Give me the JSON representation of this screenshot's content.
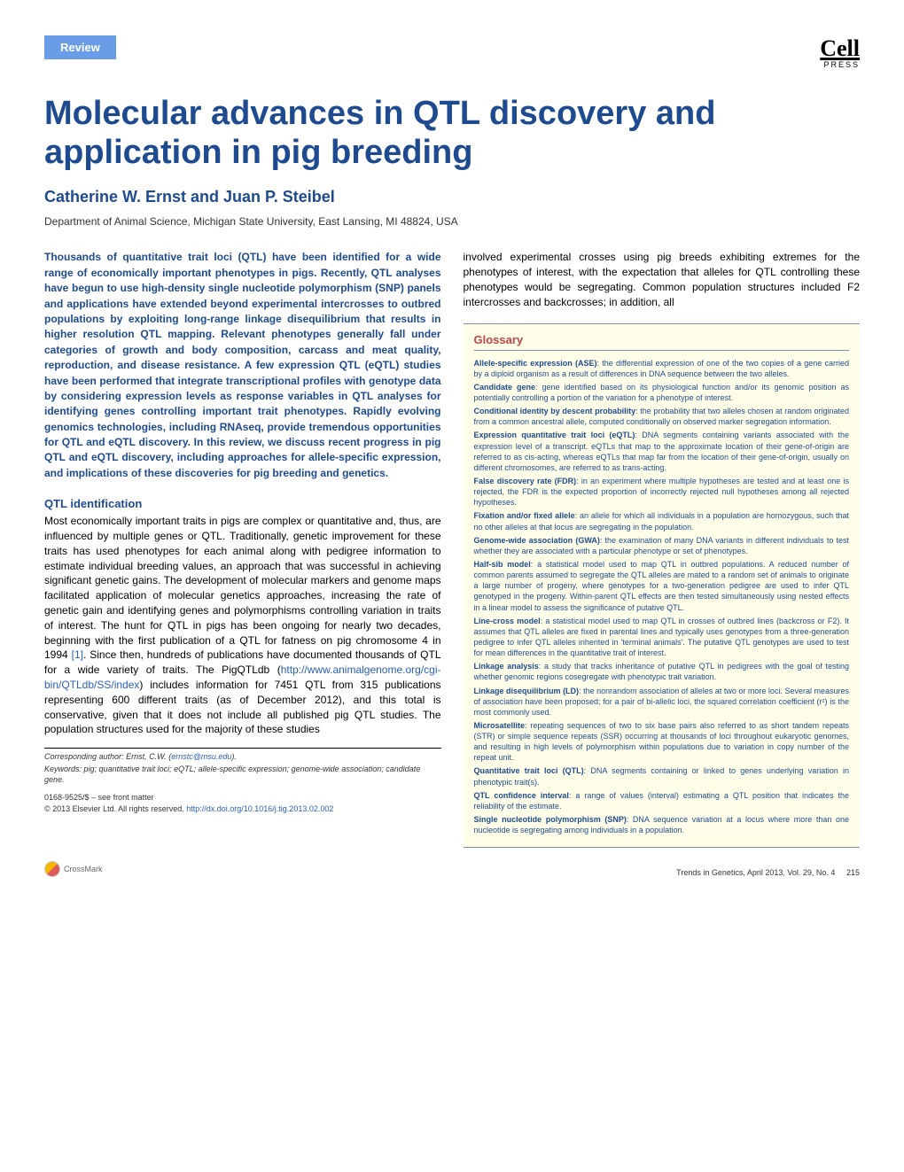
{
  "badge": "Review",
  "logo": {
    "brand": "Cell",
    "sub": "PRESS"
  },
  "title": "Molecular advances in QTL discovery and application in pig breeding",
  "authors": "Catherine W. Ernst and Juan P. Steibel",
  "affiliation": "Department of Animal Science, Michigan State University, East Lansing, MI 48824, USA",
  "abstract": "Thousands of quantitative trait loci (QTL) have been identified for a wide range of economically important phenotypes in pigs. Recently, QTL analyses have begun to use high-density single nucleotide polymorphism (SNP) panels and applications have extended beyond experimental intercrosses to outbred populations by exploiting long-range linkage disequilibrium that results in higher resolution QTL mapping. Relevant phenotypes generally fall under categories of growth and body composition, carcass and meat quality, reproduction, and disease resistance. A few expression QTL (eQTL) studies have been performed that integrate transcriptional profiles with genotype data by considering expression levels as response variables in QTL analyses for identifying genes controlling important trait phenotypes. Rapidly evolving genomics technologies, including RNAseq, provide tremendous opportunities for QTL and eQTL discovery. In this review, we discuss recent progress in pig QTL and eQTL discovery, including approaches for allele-specific expression, and implications of these discoveries for pig breeding and genetics.",
  "section_heading": "QTL identification",
  "body_p1": "Most economically important traits in pigs are complex or quantitative and, thus, are influenced by multiple genes or QTL. Traditionally, genetic improvement for these traits has used phenotypes for each animal along with pedigree information to estimate individual breeding values, an approach that was successful in achieving significant genetic gains. The development of molecular markers and genome maps facilitated application of molecular genetics approaches, increasing the rate of genetic gain and identifying genes and polymorphisms controlling variation in traits of interest. The hunt for QTL in pigs has been ongoing for nearly two decades, beginning with the first publication of a QTL for fatness on pig chromosome 4 in 1994 ",
  "ref1": "[1]",
  "body_p1b": ". Since then, hundreds of publications have documented thousands of QTL for a wide variety of traits. The PigQTLdb (",
  "db_url": "http://www.animalgenome.org/cgi-bin/QTLdb/SS/index",
  "body_p1c": ") includes information for 7451 QTL from 315 publications representing 600 different traits (as of December 2012), and this total is conservative, given that it does not include all published pig QTL studies. The population structures used for the majority of these studies",
  "corresponding_label": "Corresponding author:",
  "corresponding_name": "Ernst, C.W.",
  "corresponding_email": "ernstc@msu.edu",
  "keywords_label": "Keywords:",
  "keywords": "pig; quantitative trait loci; eQTL; allele-specific expression; genome-wide association; candidate gene.",
  "front_matter_line1": "0168-9525/$ – see front matter",
  "front_matter_line2": "© 2013 Elsevier Ltd. All rights reserved.",
  "doi": "http://dx.doi.org/10.1016/j.tig.2013.02.002",
  "right_intro": "involved experimental crosses using pig breeds exhibiting extremes for the phenotypes of interest, with the expectation that alleles for QTL controlling these phenotypes would be segregating. Common population structures included F2 intercrosses and backcrosses; in addition, all",
  "glossary_title": "Glossary",
  "glossary": [
    {
      "term": "Allele-specific expression (ASE)",
      "def": ": the differential expression of one of the two copies of a gene carried by a diploid organism as a result of differences in DNA sequence between the two alleles."
    },
    {
      "term": "Candidate gene",
      "def": ": gene identified based on its physiological function and/or its genomic position as potentially controlling a portion of the variation for a phenotype of interest."
    },
    {
      "term": "Conditional identity by descent probability",
      "def": ": the probability that two alleles chosen at random originated from a common ancestral allele, computed conditionally on observed marker segregation information."
    },
    {
      "term": "Expression quantitative trait loci (eQTL)",
      "def": ": DNA segments containing variants associated with the expression level of a transcript. eQTLs that map to the approximate location of their gene-of-origin are referred to as cis-acting, whereas eQTLs that map far from the location of their gene-of-origin, usually on different chromosomes, are referred to as trans-acting."
    },
    {
      "term": "False discovery rate (FDR)",
      "def": ": in an experiment where multiple hypotheses are tested and at least one is rejected, the FDR is the expected proportion of incorrectly rejected null hypotheses among all rejected hypotheses."
    },
    {
      "term": "Fixation and/or fixed allele",
      "def": ": an allele for which all individuals in a population are homozygous, such that no other alleles at that locus are segregating in the population."
    },
    {
      "term": "Genome-wide association (GWA)",
      "def": ": the examination of many DNA variants in different individuals to test whether they are associated with a particular phenotype or set of phenotypes."
    },
    {
      "term": "Half-sib model",
      "def": ": a statistical model used to map QTL in outbred populations. A reduced number of common parents assumed to segregate the QTL alleles are mated to a random set of animals to originate a large number of progeny, where genotypes for a two-generation pedigree are used to infer QTL genotyped in the progeny. Within-parent QTL effects are then tested simultaneously using nested effects in a linear model to assess the significance of putative QTL."
    },
    {
      "term": "Line-cross model",
      "def": ": a statistical model used to map QTL in crosses of outbred lines (backcross or F2). It assumes that QTL alleles are fixed in parental lines and typically uses genotypes from a three-generation pedigree to infer QTL alleles inherited in 'terminal animals'. The putative QTL genotypes are used to test for mean differences in the quantitative trait of interest."
    },
    {
      "term": "Linkage analysis",
      "def": ": a study that tracks inheritance of putative QTL in pedigrees with the goal of testing whether genomic regions cosegregate with phenotypic trait variation."
    },
    {
      "term": "Linkage disequilibrium (LD)",
      "def": ": the nonrandom association of alleles at two or more loci. Several measures of association have been proposed; for a pair of bi-allelic loci, the squared correlation coefficient (r²) is the most commonly used."
    },
    {
      "term": "Microsatellite",
      "def": ": repeating sequences of two to six base pairs also referred to as short tandem repeats (STR) or simple sequence repeats (SSR) occurring at thousands of loci throughout eukaryotic genomes, and resulting in high levels of polymorphism within populations due to variation in copy number of the repeat unit."
    },
    {
      "term": "Quantitative trait loci (QTL)",
      "def": ": DNA segments containing or linked to genes underlying variation in phenotypic trait(s)."
    },
    {
      "term": "QTL confidence interval",
      "def": ": a range of values (interval) estimating a QTL position that indicates the reliability of the estimate."
    },
    {
      "term": "Single nucleotide polymorphism (SNP)",
      "def": ": DNA sequence variation at a locus where more than one nucleotide is segregating among individuals in a population."
    }
  ],
  "crossmark": "CrossMark",
  "page_info": "Trends in Genetics, April 2013, Vol. 29, No. 4",
  "page_number": "215"
}
